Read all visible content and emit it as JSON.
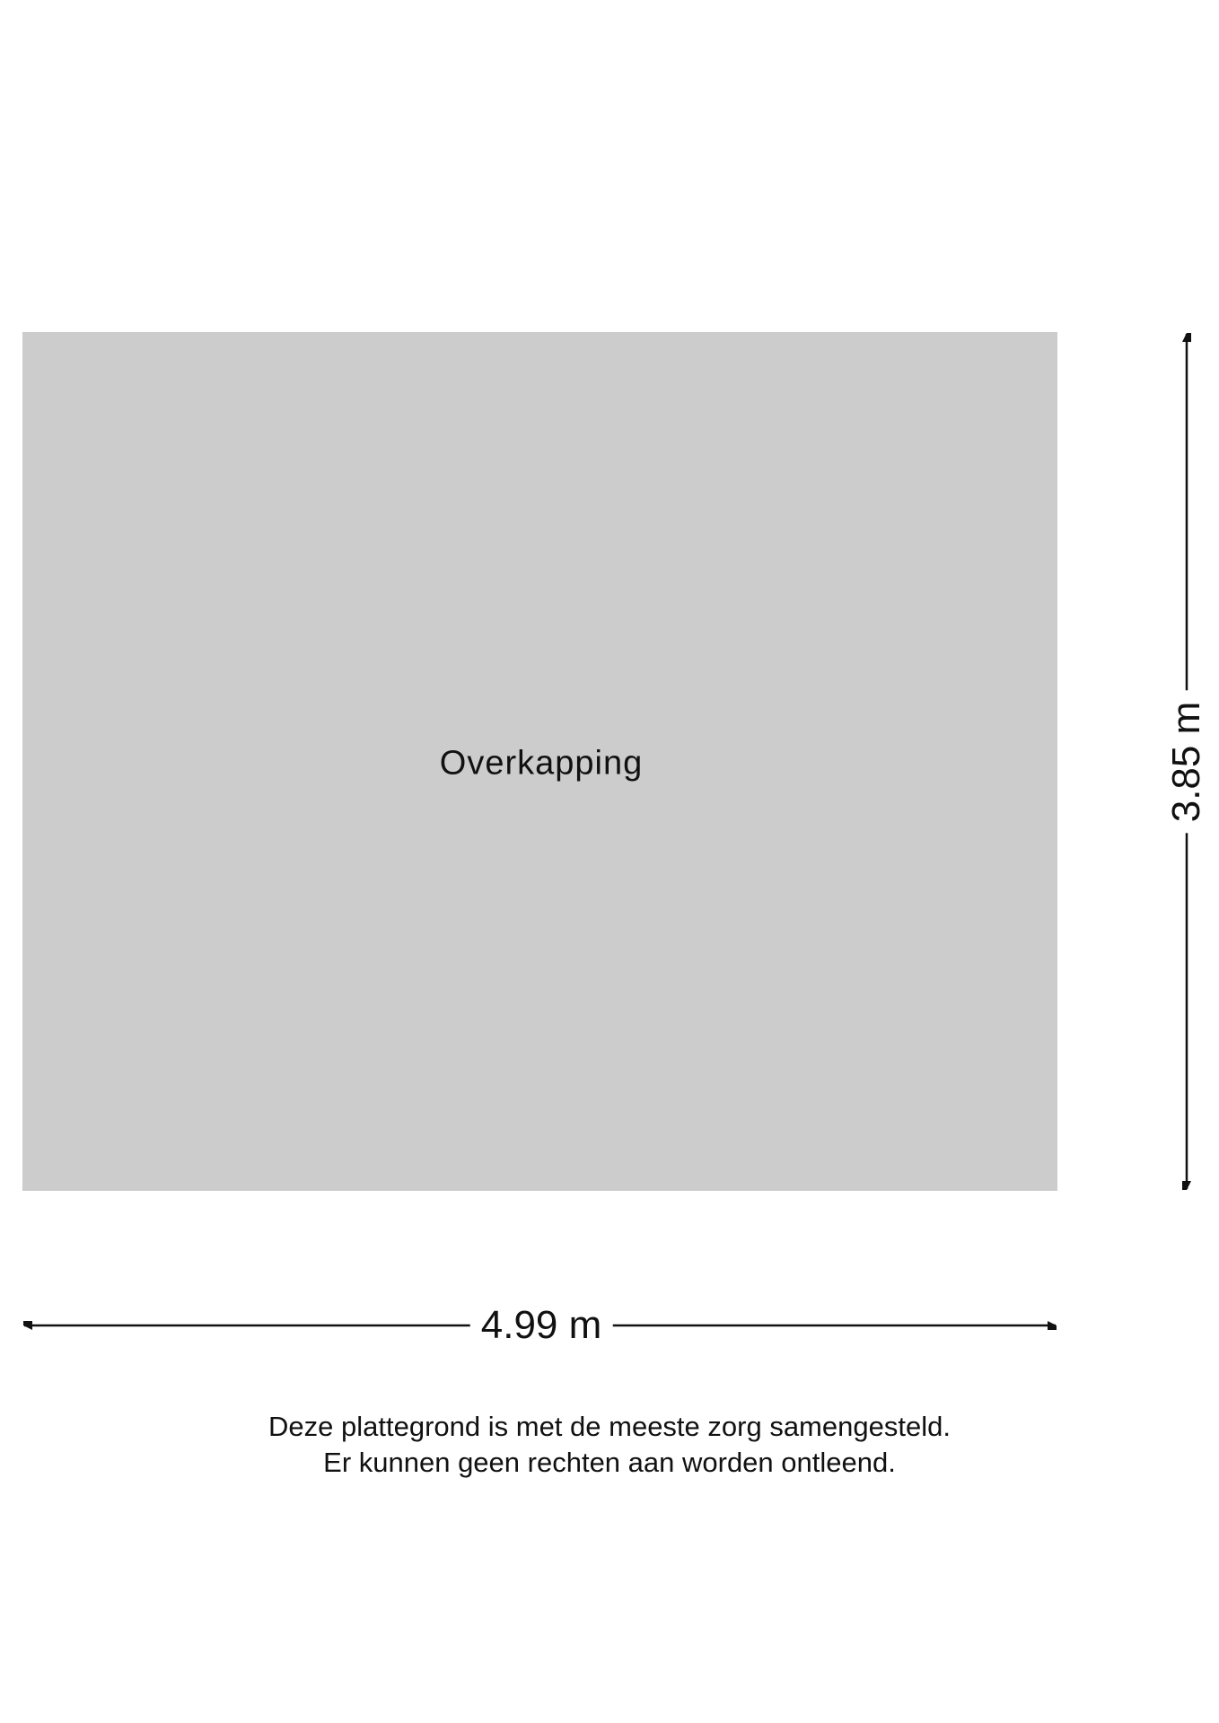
{
  "floorplan": {
    "room": {
      "name": "Overkapping",
      "fill_color": "#cccccc"
    },
    "dimensions": {
      "width": "4.99 m",
      "height": "3.85 m"
    },
    "disclaimer": [
      "Deze plattegrond is met de meeste zorg samengesteld.",
      "Er kunnen geen rechten aan worden ontleend."
    ]
  }
}
